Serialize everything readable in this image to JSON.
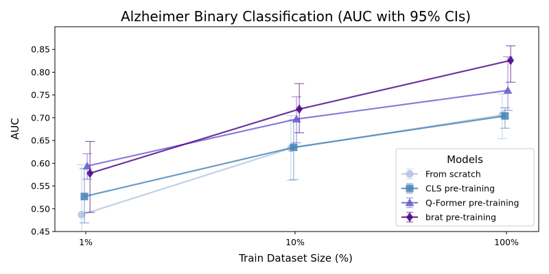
{
  "chart_data": {
    "type": "line",
    "title": "Alzheimer Binary Classification (AUC with 95% CIs)",
    "xlabel": "Train Dataset Size (%)",
    "ylabel": "AUC",
    "categories": [
      "1%",
      "10%",
      "100%"
    ],
    "ylim": [
      0.45,
      0.9
    ],
    "yticks": [
      "0.45",
      "0.50",
      "0.55",
      "0.60",
      "0.65",
      "0.70",
      "0.75",
      "0.80",
      "0.85"
    ],
    "grid": false,
    "legend": {
      "title": "Models",
      "placement": "lower-right"
    },
    "series": [
      {
        "name": "From scratch",
        "marker": "circle",
        "color": "#b0c4de",
        "values": [
          0.487,
          0.633,
          0.706
        ],
        "ci_low": [
          0.36,
          0.562,
          0.654
        ],
        "ci_high": [
          0.597,
          0.705,
          0.752
        ]
      },
      {
        "name": "CLS pre-training",
        "marker": "square",
        "color": "#4682b4",
        "values": [
          0.527,
          0.635,
          0.704
        ],
        "ci_low": [
          0.469,
          0.564,
          0.677
        ],
        "ci_high": [
          0.588,
          0.695,
          0.722
        ]
      },
      {
        "name": "Q-Former pre-training",
        "marker": "triangle",
        "color": "#6a5acd",
        "values": [
          0.594,
          0.697,
          0.76
        ],
        "ci_low": [
          0.565,
          0.645,
          0.716
        ],
        "ci_high": [
          0.621,
          0.746,
          0.834
        ]
      },
      {
        "name": "brat pre-training",
        "marker": "diamond",
        "color": "#4b0082",
        "values": [
          0.578,
          0.719,
          0.826
        ],
        "ci_low": [
          0.492,
          0.667,
          0.778
        ],
        "ci_high": [
          0.648,
          0.775,
          0.858
        ]
      }
    ]
  }
}
